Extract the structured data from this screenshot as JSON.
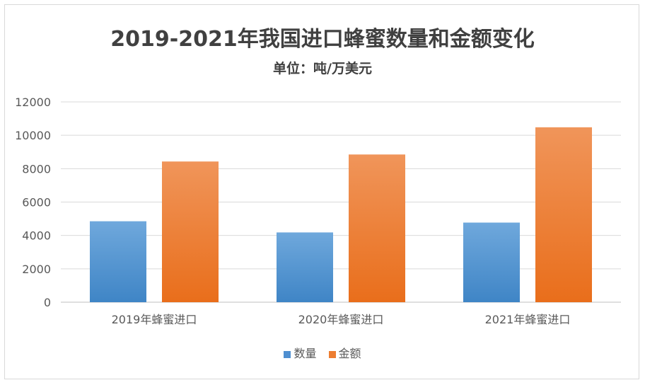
{
  "chart_data": {
    "type": "bar",
    "title": "2019-2021年我国进口蜂蜜数量和金额变化",
    "subtitle": "单位：吨/万美元",
    "categories": [
      "2019年蜂蜜进口",
      "2020年蜂蜜进口",
      "2021年蜂蜜进口"
    ],
    "series": [
      {
        "name": "数量",
        "values": [
          4850,
          4180,
          4770
        ],
        "color": "#5B9BD5"
      },
      {
        "name": "金额",
        "values": [
          8430,
          8850,
          10480
        ],
        "color": "#ED7D31"
      }
    ],
    "ylim": [
      0,
      12000
    ],
    "yticks": [
      "0",
      "2000",
      "4000",
      "6000",
      "8000",
      "10000",
      "12000"
    ],
    "grid": true,
    "legend": "bottom"
  }
}
